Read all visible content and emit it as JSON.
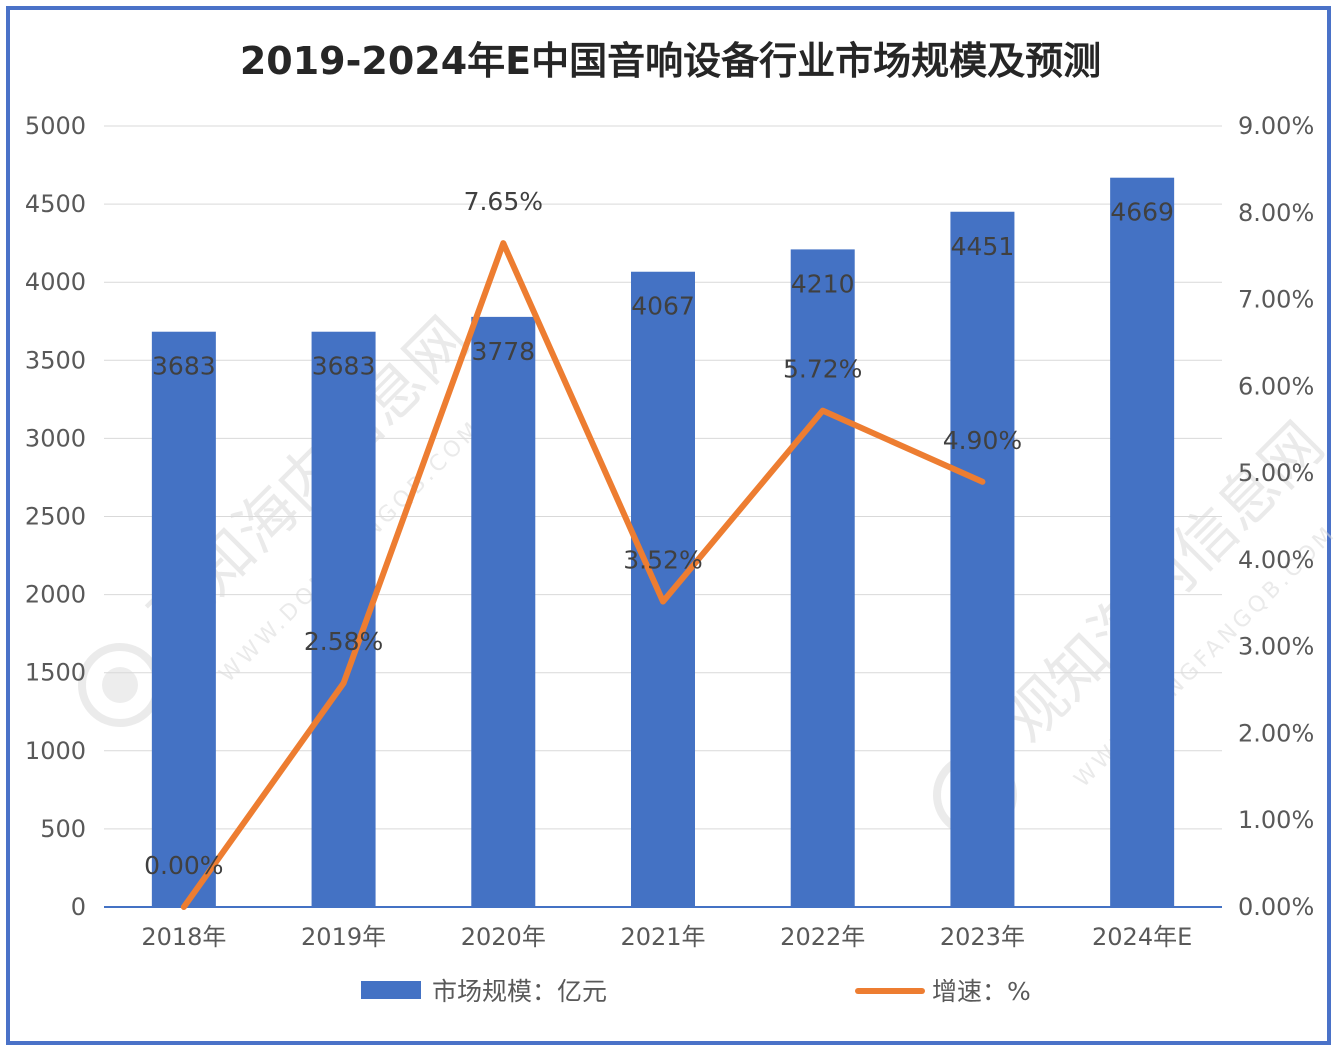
{
  "chart_data": {
    "type": "bar+line",
    "title": "2019-2024年E中国音响设备行业市场规模及预测",
    "categories": [
      "2018年",
      "2019年",
      "2020年",
      "2021年",
      "2022年",
      "2023年",
      "2024年E"
    ],
    "bar_series": {
      "name": "市场规模：亿元",
      "values": [
        3683,
        3683,
        3778,
        4067,
        4210,
        4451,
        4669
      ],
      "labels": [
        "3683",
        "3683",
        "3778",
        "4067",
        "4210",
        "4451",
        "4669"
      ],
      "color": "#4472c4"
    },
    "line_series": {
      "name": "增速：%",
      "values": [
        0.0,
        2.58,
        7.65,
        3.52,
        5.72,
        4.9
      ],
      "labels": [
        "0.00%",
        "2.58%",
        "7.65%",
        "3.52%",
        "5.72%",
        "4.90%"
      ],
      "color": "#ed7d31"
    },
    "y_left": {
      "min": 0,
      "max": 5000,
      "ticks": [
        "0",
        "500",
        "1000",
        "1500",
        "2000",
        "2500",
        "3000",
        "3500",
        "4000",
        "4500",
        "5000"
      ]
    },
    "y_right": {
      "min": 0,
      "max": 9,
      "ticks": [
        "0.00%",
        "1.00%",
        "2.00%",
        "3.00%",
        "4.00%",
        "5.00%",
        "6.00%",
        "7.00%",
        "8.00%",
        "9.00%"
      ]
    },
    "grid": true,
    "legend": "bottom",
    "watermark": {
      "text": "观知海内信息网",
      "subtext": "WWW.DONGFANGQB.COM"
    }
  }
}
